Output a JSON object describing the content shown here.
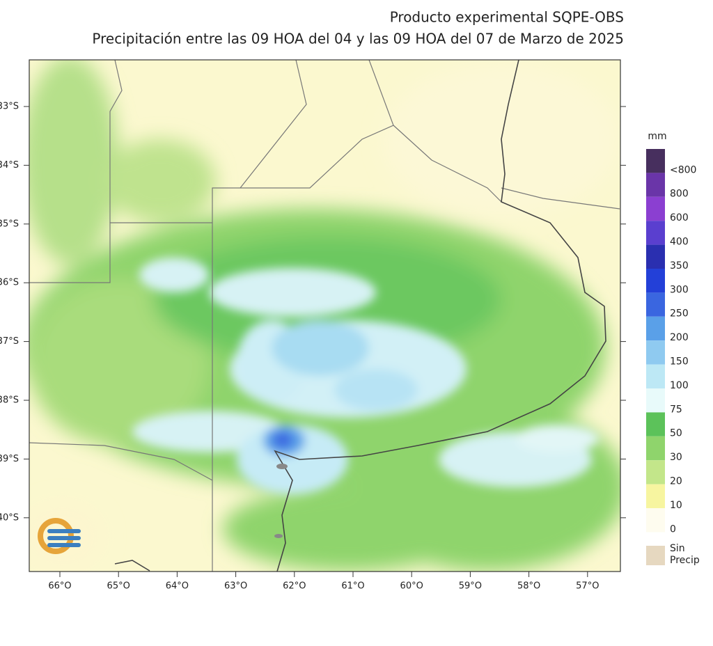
{
  "header": {
    "title": "Producto experimental SQPE-OBS",
    "subtitle": "Precipitación entre las 09 HOA del 04 y las 09 HOA del 07 de Marzo de 2025"
  },
  "map": {
    "lon_labels": [
      "66°O",
      "65°O",
      "64°O",
      "63°O",
      "62°O",
      "61°O",
      "60°O",
      "59°O",
      "58°O",
      "57°O"
    ],
    "lat_labels": [
      "33°S",
      "34°S",
      "35°S",
      "36°S",
      "37°S",
      "38°S",
      "39°S",
      "40°S"
    ]
  },
  "legend": {
    "unit": "mm",
    "items": [
      {
        "label": "<800",
        "color": "#472f5e"
      },
      {
        "label": "800",
        "color": "#6a35a8"
      },
      {
        "label": "600",
        "color": "#8b3fd1"
      },
      {
        "label": "400",
        "color": "#5a3fcf"
      },
      {
        "label": "350",
        "color": "#2a2fb0"
      },
      {
        "label": "300",
        "color": "#2340d8"
      },
      {
        "label": "250",
        "color": "#3a66e0"
      },
      {
        "label": "200",
        "color": "#5aa0e8"
      },
      {
        "label": "150",
        "color": "#8fcaf0"
      },
      {
        "label": "100",
        "color": "#bde8f5"
      },
      {
        "label": "75",
        "color": "#e8fafa"
      },
      {
        "label": "50",
        "color": "#5cc25a"
      },
      {
        "label": "30",
        "color": "#8fd46c"
      },
      {
        "label": "20",
        "color": "#c3e68a"
      },
      {
        "label": "10",
        "color": "#f7f5a0"
      },
      {
        "label": "0",
        "color": "#fefcef"
      },
      {
        "label": "Sin Precip",
        "color": "#e6d8c0"
      }
    ]
  }
}
